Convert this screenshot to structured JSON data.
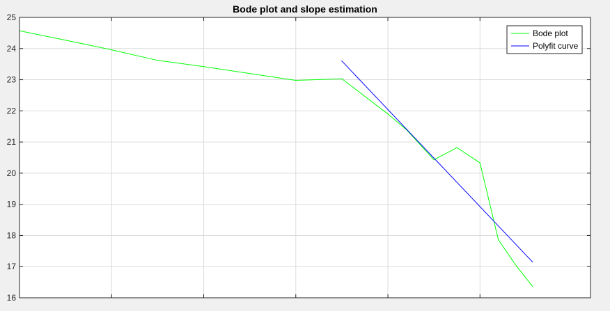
{
  "colors": {
    "figure_background": "#f0f0f0",
    "axes_background": "#ffffff",
    "grid": "#dcdcdc",
    "axis": "#262626"
  },
  "chart_data": {
    "type": "line",
    "title": "Bode plot and slope estimation",
    "xlabel": "",
    "ylabel": "",
    "xlim": [
      0,
      6.2
    ],
    "ylim": [
      16,
      25
    ],
    "x_ticks": [
      1,
      2,
      3,
      4,
      5
    ],
    "y_ticks": [
      16,
      17,
      18,
      19,
      20,
      21,
      22,
      23,
      24,
      25
    ],
    "y_tick_labels": [
      "16",
      "17",
      "18",
      "19",
      "20",
      "21",
      "22",
      "23",
      "24",
      "25"
    ],
    "grid": true,
    "legend_position": "top-right",
    "series": [
      {
        "name": "Bode plot",
        "color": "#00ff00",
        "x": [
          0,
          0.5,
          1,
          1.5,
          2,
          2.5,
          3,
          3.5,
          4,
          4.2,
          4.5,
          4.75,
          5,
          5.2,
          5.4,
          5.57
        ],
        "y": [
          24.57,
          24.27,
          23.96,
          23.62,
          23.42,
          23.2,
          22.98,
          23.03,
          21.9,
          21.4,
          20.43,
          20.82,
          20.33,
          17.86,
          17.0,
          16.37
        ]
      },
      {
        "name": "Polyfit curve",
        "color": "#0000ff",
        "x": [
          3.5,
          5.57
        ],
        "y": [
          23.6,
          17.15
        ]
      }
    ]
  }
}
